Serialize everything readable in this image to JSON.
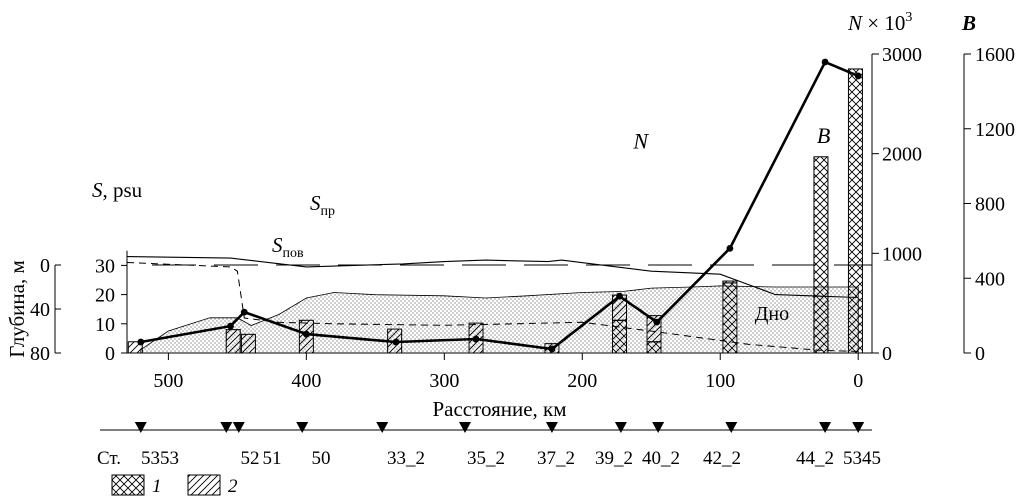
{
  "chart_data": {
    "type": "combined",
    "x_axis": {
      "label": "Расстояние, км",
      "range": [
        530,
        -10
      ],
      "ticks": [
        500,
        400,
        300,
        200,
        100,
        0
      ]
    },
    "salinity_axis": {
      "label": "S, psu",
      "range": [
        0,
        35
      ],
      "ticks": [
        0,
        10,
        20,
        30
      ]
    },
    "depth_axis": {
      "label": "Глубина, м",
      "range": [
        0,
        80
      ],
      "ticks": [
        0,
        40,
        80
      ]
    },
    "n_axis": {
      "label": "N × 10",
      "label_sup": "3",
      "range": [
        0,
        3000
      ],
      "ticks": [
        0,
        1000,
        2000,
        3000
      ]
    },
    "b_axis": {
      "label": "B",
      "range": [
        0,
        1600
      ],
      "ticks": [
        0,
        400,
        800,
        1200,
        1600
      ]
    },
    "series": [
      {
        "name": "S",
        "name_sub": "пр",
        "style": "solid-thin",
        "x": [
          530,
          455,
          400,
          330,
          300,
          270,
          225,
          215,
          150,
          100,
          80,
          60,
          30,
          0
        ],
        "y": [
          33,
          32.5,
          29.5,
          30.5,
          31.3,
          31.8,
          31.3,
          31.8,
          28,
          27,
          23.5,
          20,
          19.5,
          19
        ]
      },
      {
        "name": "S",
        "name_sub": "пов",
        "style": "dashed-thin",
        "x": [
          530,
          455,
          450,
          445,
          420,
          380,
          300,
          200,
          150,
          80,
          30,
          0
        ],
        "y": [
          31,
          29.5,
          28,
          12,
          10.5,
          10,
          9.5,
          10.5,
          7.5,
          3,
          1,
          0.5
        ]
      },
      {
        "name": "N",
        "style": "solid-thick-markers",
        "x": [
          520,
          455,
          445,
          400,
          335,
          277,
          222,
          173,
          146,
          93,
          24,
          0
        ],
        "y": [
          110,
          270,
          410,
          190,
          110,
          140,
          40,
          570,
          310,
          1050,
          2920,
          2780
        ]
      }
    ],
    "depth_line": {
      "label": "Дно",
      "y": 0
    },
    "bottom_profile": {
      "label": "Дно",
      "x": [
        520,
        500,
        470,
        450,
        440,
        420,
        400,
        380,
        350,
        300,
        270,
        240,
        200,
        170,
        150,
        120,
        100,
        60,
        40,
        20,
        0
      ],
      "depth": [
        77,
        60,
        48,
        48,
        55,
        45,
        30,
        25,
        27,
        28,
        30,
        28,
        25,
        24,
        21,
        20,
        19,
        20,
        20,
        20,
        20
      ]
    },
    "bars": [
      {
        "x": 524,
        "b": 0,
        "hatch2": 60
      },
      {
        "x": 453,
        "b": 0,
        "hatch2": 125
      },
      {
        "x": 442,
        "b": 0,
        "hatch2": 100
      },
      {
        "x": 400,
        "b": 0,
        "hatch2": 175
      },
      {
        "x": 336,
        "b": 0,
        "hatch2": 128
      },
      {
        "x": 277,
        "b": 0,
        "hatch2": 160
      },
      {
        "x": 222,
        "b": 0,
        "hatch2": 50
      },
      {
        "x": 173,
        "b": 175,
        "hatch2": 135
      },
      {
        "x": 148,
        "b": 60,
        "hatch2": 140
      },
      {
        "x": 93,
        "b": 375,
        "hatch2": 10
      },
      {
        "x": 27,
        "b": 1050,
        "hatch2": 0
      },
      {
        "x": 2,
        "b": 1520,
        "hatch2": 0
      }
    ],
    "annotations": [
      {
        "text": "N",
        "x": 163,
        "y": 2050
      },
      {
        "text": "B",
        "x": 30,
        "y": 1125
      }
    ],
    "stations": {
      "prefix": "Ст.",
      "labels": [
        "5353",
        "52",
        "51",
        "50",
        "33_2",
        "35_2",
        "37_2",
        "39_2",
        "40_2",
        "42_2",
        "44_2",
        "5345"
      ],
      "x": [
        520,
        458,
        449,
        403,
        345,
        285,
        222,
        172,
        145,
        92,
        24,
        0
      ]
    },
    "legend": [
      {
        "symbol": "cross-hatch",
        "label": "1"
      },
      {
        "symbol": "diagonal-hatch",
        "label": "2"
      }
    ]
  }
}
